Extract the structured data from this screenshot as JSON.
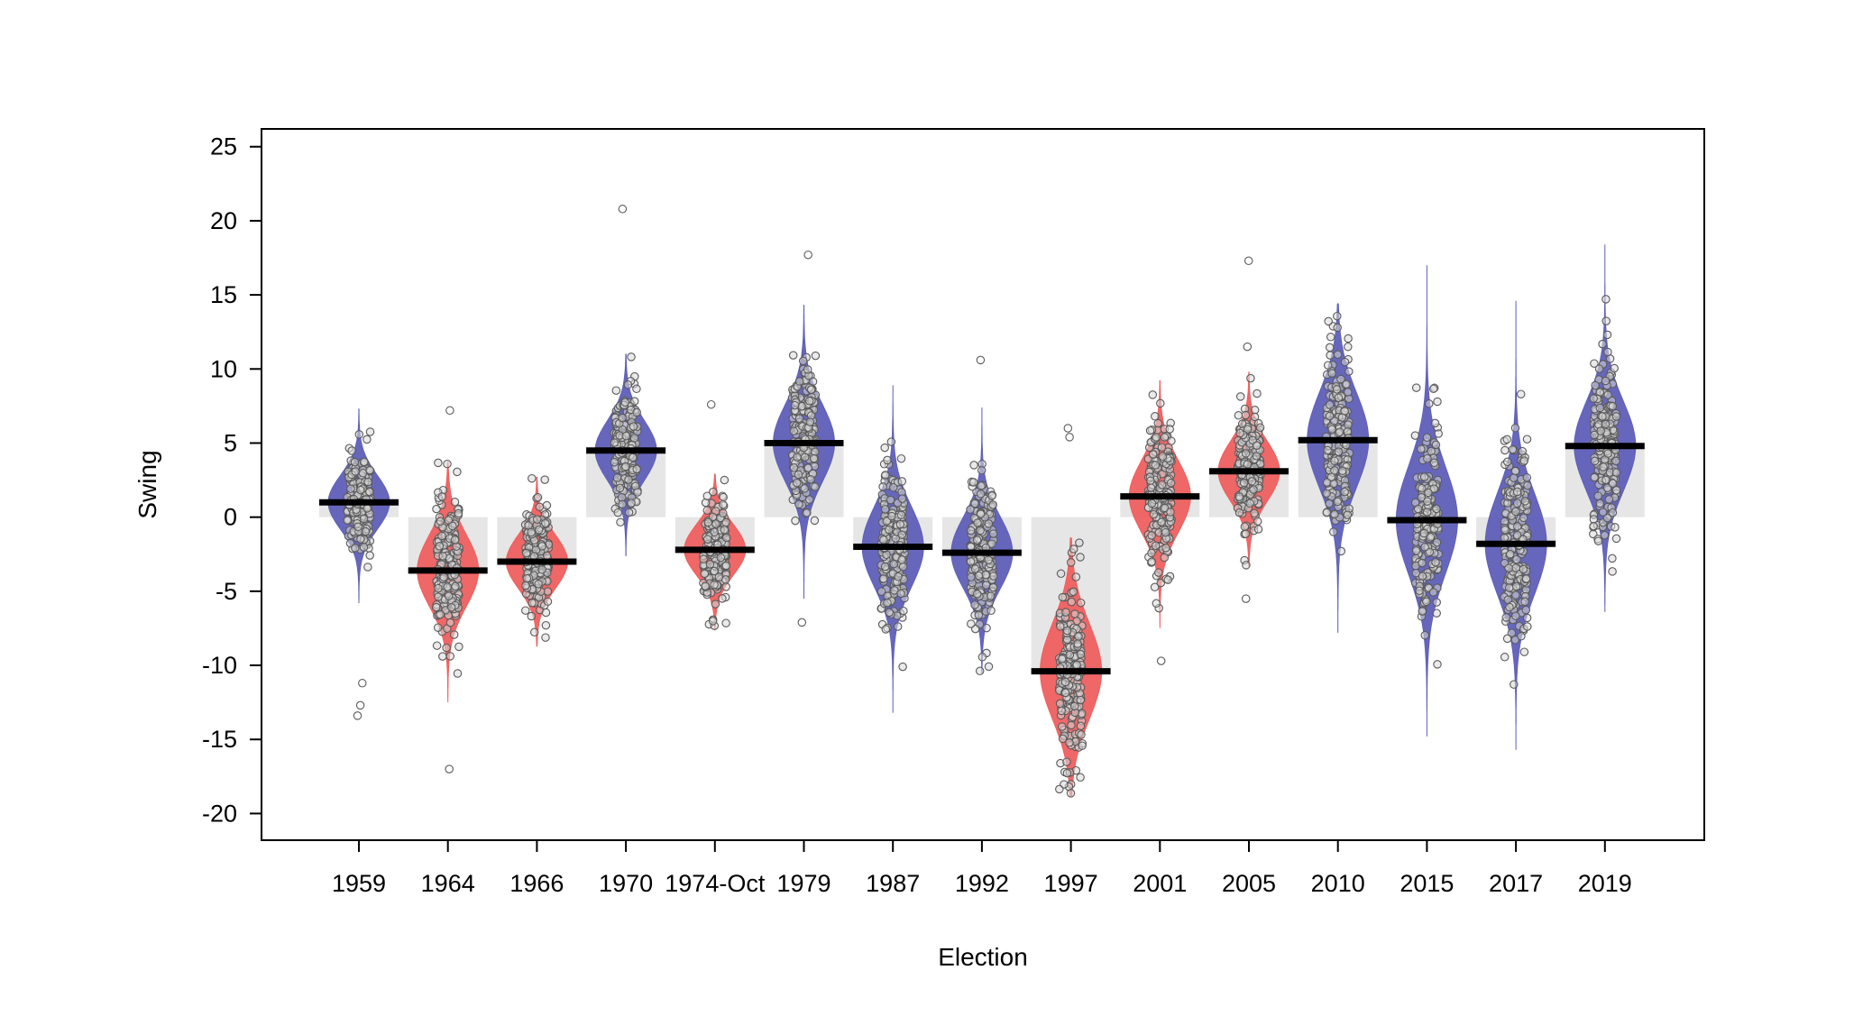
{
  "chart_data": {
    "type": "pirate",
    "title": "",
    "xlabel": "Election",
    "ylabel": "Swing",
    "ylim": [
      -21.8,
      26.2
    ],
    "yticks": [
      -20,
      -15,
      -10,
      -5,
      0,
      5,
      10,
      15,
      20,
      25
    ],
    "grid": false,
    "legend": "none",
    "colors": {
      "positive_swing": "#5e5fb8",
      "negative_swing": "#ef5f5f",
      "bar": "#e6e6e6",
      "point_stroke": "#5a5a5a",
      "point_fill": "#d8d8d8",
      "mean_line": "#000000"
    },
    "categories": [
      "1959",
      "1964",
      "1966",
      "1970",
      "1974-Oct",
      "1979",
      "1987",
      "1992",
      "1997",
      "2001",
      "2005",
      "2010",
      "2015",
      "2017",
      "2019"
    ],
    "means": [
      1.0,
      -3.6,
      -3.0,
      4.5,
      -2.2,
      5.0,
      -2.0,
      -2.4,
      -10.4,
      1.4,
      3.1,
      5.2,
      -0.2,
      -1.8,
      4.8
    ],
    "series": [
      {
        "category": "1959",
        "mean": 1.0,
        "sd": 1.8,
        "min": -5.8,
        "max": 7.3,
        "color": "blue",
        "outliers": [
          -11.2,
          -12.7,
          -13.4
        ]
      },
      {
        "category": "1964",
        "mean": -3.6,
        "sd": 2.4,
        "min": -12.5,
        "max": 3.7,
        "color": "red",
        "outliers": [
          7.2,
          -17.0
        ]
      },
      {
        "category": "1966",
        "mean": -3.0,
        "sd": 1.8,
        "min": -8.7,
        "max": 2.7,
        "color": "red",
        "outliers": []
      },
      {
        "category": "1970",
        "mean": 4.5,
        "sd": 2.0,
        "min": -2.6,
        "max": 11.0,
        "color": "blue",
        "outliers": [
          20.8
        ]
      },
      {
        "category": "1974-Oct",
        "mean": -2.2,
        "sd": 1.7,
        "min": -7.6,
        "max": 2.9,
        "color": "red",
        "outliers": [
          7.6
        ]
      },
      {
        "category": "1979",
        "mean": 5.0,
        "sd": 2.6,
        "min": -5.5,
        "max": 14.3,
        "color": "blue",
        "outliers": [
          17.7,
          -7.1
        ]
      },
      {
        "category": "1987",
        "mean": -2.0,
        "sd": 2.7,
        "min": -13.2,
        "max": 8.9,
        "color": "blue",
        "outliers": []
      },
      {
        "category": "1992",
        "mean": -2.4,
        "sd": 2.4,
        "min": -10.5,
        "max": 7.4,
        "color": "blue",
        "outliers": [
          10.6
        ]
      },
      {
        "category": "1997",
        "mean": -10.4,
        "sd": 3.2,
        "min": -18.8,
        "max": -1.4,
        "color": "red",
        "outliers": [
          6.0,
          5.4
        ]
      },
      {
        "category": "2001",
        "mean": 1.4,
        "sd": 2.4,
        "min": -7.5,
        "max": 9.2,
        "color": "red",
        "outliers": [
          -9.7
        ]
      },
      {
        "category": "2005",
        "mean": 3.1,
        "sd": 2.0,
        "min": -3.3,
        "max": 9.8,
        "color": "red",
        "outliers": [
          11.5,
          17.3,
          -5.5
        ]
      },
      {
        "category": "2010",
        "mean": 5.2,
        "sd": 3.2,
        "min": -7.8,
        "max": 14.4,
        "color": "blue",
        "outliers": []
      },
      {
        "category": "2015",
        "mean": -0.2,
        "sd": 3.6,
        "min": -14.8,
        "max": 17.0,
        "color": "blue",
        "outliers": []
      },
      {
        "category": "2017",
        "mean": -1.8,
        "sd": 3.4,
        "min": -15.7,
        "max": 14.6,
        "color": "blue",
        "outliers": []
      },
      {
        "category": "2019",
        "mean": 4.8,
        "sd": 3.0,
        "min": -6.4,
        "max": 18.4,
        "color": "blue",
        "outliers": []
      }
    ]
  }
}
